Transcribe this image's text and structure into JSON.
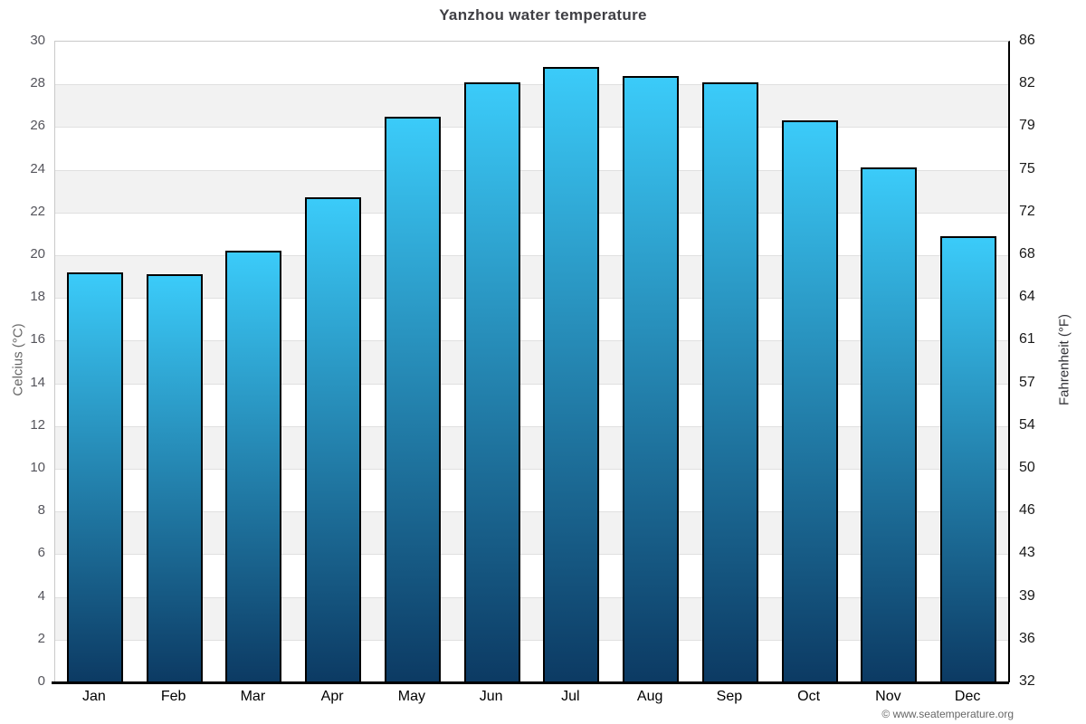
{
  "page": {
    "title": "Yanzhou water temperature",
    "credit": "© www.seatemperature.org"
  },
  "axes": {
    "left": {
      "title": "Celcius (°C)",
      "ticks": [
        30,
        28,
        26,
        24,
        22,
        20,
        18,
        16,
        14,
        12,
        10,
        8,
        6,
        4,
        2,
        0
      ]
    },
    "right": {
      "title": "Fahrenheit (°F)",
      "labels": [
        "86",
        "82",
        "79",
        "75",
        "72",
        "68",
        "64",
        "61",
        "57",
        "54",
        "50",
        "46",
        "43",
        "39",
        "36",
        "32"
      ]
    }
  },
  "chart_data": {
    "type": "bar",
    "title": "Yanzhou water temperature",
    "categories": [
      "Jan",
      "Feb",
      "Mar",
      "Apr",
      "May",
      "Jun",
      "Jul",
      "Aug",
      "Sep",
      "Oct",
      "Nov",
      "Dec"
    ],
    "values": [
      19.2,
      19.1,
      20.2,
      22.7,
      26.5,
      28.1,
      28.8,
      28.4,
      28.1,
      26.3,
      24.1,
      20.9
    ],
    "unit": "°C",
    "xlabel": "",
    "ylabel_left": "Celcius (°C)",
    "ylabel_right": "Fahrenheit (°F)",
    "ylim": [
      0,
      30
    ],
    "y_tick_step": 2,
    "legend": "none",
    "grid": "horizontal gridlines every 2°C with alternating shaded bands",
    "colors": {
      "bar_gradient_top": "#3bcbf9",
      "bar_gradient_bottom": "#0c3a63",
      "bar_border": "#000000",
      "band_shaded": "#f2f2f2",
      "band_plain": "#ffffff",
      "gridline": "#e0e0e0",
      "axis_black": "#000000",
      "axis_gray": "#c9c9c9",
      "title_text": "#3f3f44"
    }
  }
}
